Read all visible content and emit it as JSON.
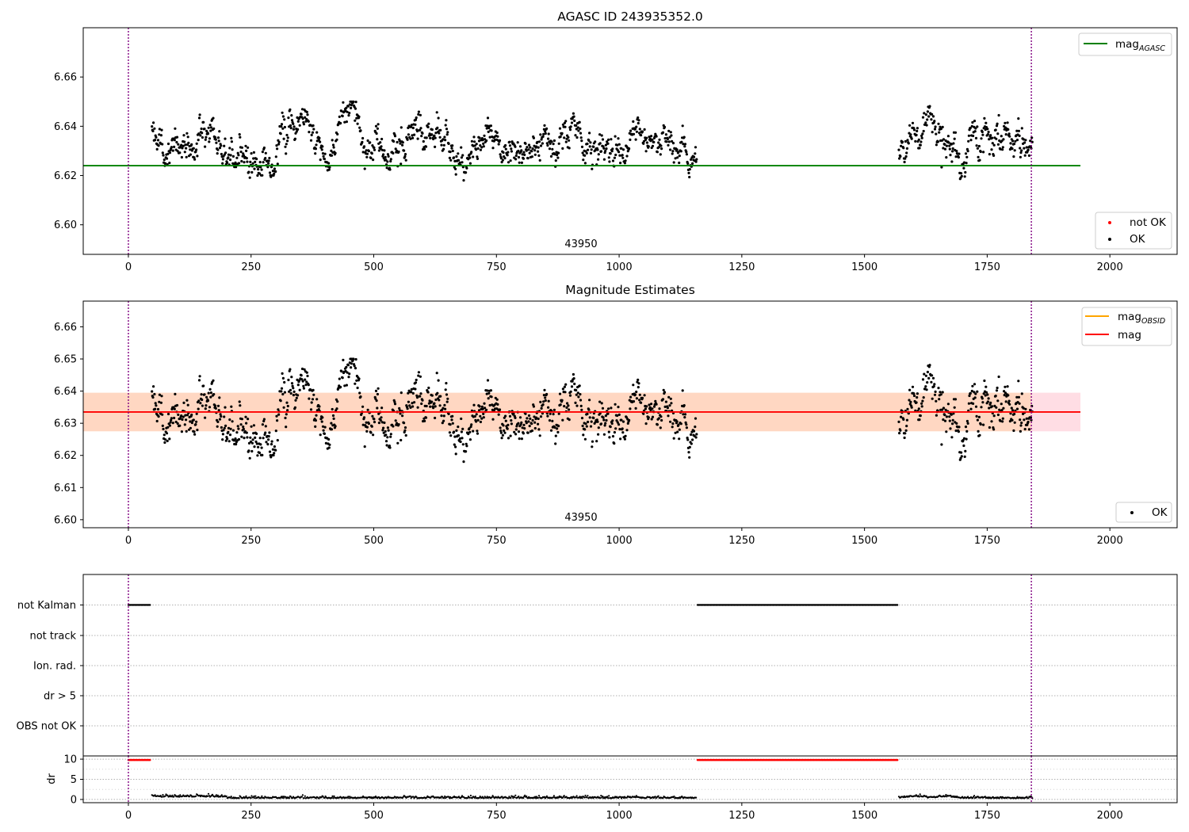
{
  "chart_data": [
    {
      "type": "scatter",
      "title": "AGASC ID 243935352.0",
      "xlabel": "",
      "ylabel": "",
      "xlim": [
        -92,
        2137
      ],
      "ylim": [
        6.588,
        6.68
      ],
      "xticks": [
        0,
        250,
        500,
        750,
        1000,
        1250,
        1500,
        1750,
        2000
      ],
      "xtick_labels": [
        "0",
        "250",
        "500",
        "750",
        "1000",
        "1250",
        "1500",
        "1750",
        "2000"
      ],
      "yticks": [
        6.6,
        6.62,
        6.64,
        6.66
      ],
      "ytick_labels": [
        "6.60",
        "6.62",
        "6.64",
        "6.66"
      ],
      "obsid_label": "43950",
      "obsid_label_x": 920,
      "vlines": [
        0,
        1840
      ],
      "hline": {
        "name": "mag_AGASC",
        "y": 6.624,
        "x": [
          -92,
          1940
        ],
        "color": "#008000"
      },
      "legend_lines": [
        {
          "text": "mag",
          "sub": "AGASC",
          "color": "#008000"
        }
      ],
      "legend_points": [
        {
          "text": "not OK",
          "color": "#ff0000"
        },
        {
          "text": "OK",
          "color": "#000000"
        }
      ],
      "series": [
        {
          "name": "OK",
          "x_ranges": [
            [
              48,
              1158
            ],
            [
              1570,
              1842
            ]
          ],
          "mean": 6.6335,
          "spread": 0.0085,
          "min": 6.618,
          "max": 6.65
        }
      ]
    },
    {
      "type": "scatter",
      "title": "Magnitude Estimates",
      "xlabel": "",
      "ylabel": "",
      "xlim": [
        -92,
        2137
      ],
      "ylim": [
        6.5975,
        6.668
      ],
      "xticks": [
        0,
        250,
        500,
        750,
        1000,
        1250,
        1500,
        1750,
        2000
      ],
      "xtick_labels": [
        "0",
        "250",
        "500",
        "750",
        "1000",
        "1250",
        "1500",
        "1750",
        "2000"
      ],
      "yticks": [
        6.6,
        6.61,
        6.62,
        6.63,
        6.64,
        6.65,
        6.66
      ],
      "ytick_labels": [
        "6.60",
        "6.61",
        "6.62",
        "6.63",
        "6.64",
        "6.65",
        "6.66"
      ],
      "obsid_label": "43950",
      "obsid_label_x": 920,
      "vlines": [
        0,
        1840
      ],
      "mag_band": {
        "x": [
          -92,
          1940
        ],
        "y": [
          6.6275,
          6.6395
        ]
      },
      "mag_obsid": {
        "y": 6.6335,
        "color": "#ffa500"
      },
      "mag": {
        "y": 6.6335,
        "color": "#ff0000"
      },
      "legend_lines": [
        {
          "text": "mag",
          "sub": "OBSID",
          "color": "#ffa500"
        },
        {
          "text": "mag",
          "sub": "",
          "color": "#ff0000"
        }
      ],
      "legend_points": [
        {
          "text": "OK",
          "color": "#000000"
        }
      ],
      "series": [
        {
          "name": "OK",
          "x_ranges": [
            [
              48,
              1158
            ],
            [
              1570,
              1842
            ]
          ],
          "mean": 6.6335,
          "spread": 0.0085,
          "min": 6.618,
          "max": 6.65
        }
      ]
    },
    {
      "type": "scatter",
      "title": "",
      "xlim": [
        -92,
        2137
      ],
      "xticks": [
        0,
        250,
        500,
        750,
        1000,
        1250,
        1500,
        1750,
        2000
      ],
      "xtick_labels": [
        "0",
        "250",
        "500",
        "750",
        "1000",
        "1250",
        "1500",
        "1750",
        "2000"
      ],
      "vlines": [
        0,
        1840
      ],
      "flag_rows": [
        "not Kalman",
        "not track",
        "Ion. rad.",
        "dr > 5",
        "OBS not OK"
      ],
      "flags": [
        {
          "row": "not Kalman",
          "x_ranges": [
            [
              0,
              46
            ],
            [
              1160,
              1568
            ]
          ]
        }
      ]
    },
    {
      "type": "scatter",
      "title": "",
      "ylabel": "dr",
      "xlim": [
        -92,
        2137
      ],
      "ylim": [
        -0.8,
        10.8
      ],
      "xticks": [
        0,
        250,
        500,
        750,
        1000,
        1250,
        1500,
        1750,
        2000
      ],
      "xtick_labels": [
        "0",
        "250",
        "500",
        "750",
        "1000",
        "1250",
        "1500",
        "1750",
        "2000"
      ],
      "yticks": [
        0,
        5,
        10
      ],
      "ytick_labels": [
        "0",
        "5",
        "10"
      ],
      "vlines": [
        0,
        1840
      ],
      "clipped": {
        "y": 9.8,
        "color": "#ff0000",
        "x_ranges": [
          [
            0,
            46
          ],
          [
            1160,
            1568
          ]
        ]
      },
      "dr_series": {
        "color": "#000000",
        "x_ranges": [
          [
            48,
            1158
          ],
          [
            1570,
            1842
          ]
        ],
        "base": 0.3
      }
    }
  ]
}
